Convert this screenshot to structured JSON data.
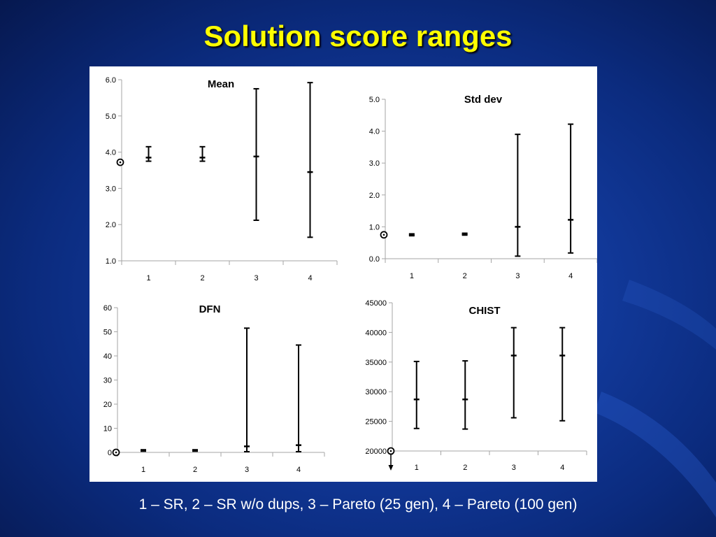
{
  "slide": {
    "title": "Solution score ranges",
    "caption": "1 – SR,  2 – SR w/o dups, 3 – Pareto (25 gen), 4 – Pareto (100 gen)"
  },
  "colors": {
    "title": "#ffff00",
    "caption": "#ffffff",
    "panel": "#ffffff",
    "marks": "#000000",
    "axis": "#a6a6a6"
  },
  "chart_data": [
    {
      "type": "errorbar",
      "title": "Mean",
      "categories": [
        "1",
        "2",
        "3",
        "4"
      ],
      "ylim": [
        1.0,
        6.0
      ],
      "yticks": [
        1.0,
        2.0,
        3.0,
        4.0,
        5.0,
        6.0
      ],
      "tick_decimals": 1,
      "reference": 3.72,
      "points": [
        {
          "center": 3.85,
          "low": 3.75,
          "high": 4.15
        },
        {
          "center": 3.85,
          "low": 3.75,
          "high": 4.15
        },
        {
          "center": 3.88,
          "low": 2.12,
          "high": 5.75
        },
        {
          "center": 3.45,
          "low": 1.65,
          "high": 5.92
        }
      ]
    },
    {
      "type": "errorbar",
      "title": "Std dev",
      "categories": [
        "1",
        "2",
        "3",
        "4"
      ],
      "ylim": [
        0.0,
        5.0
      ],
      "yticks": [
        0.0,
        1.0,
        2.0,
        3.0,
        4.0,
        5.0
      ],
      "tick_decimals": 1,
      "reference": 0.75,
      "points": [
        {
          "center": 0.75,
          "low": 0.72,
          "high": 0.78
        },
        {
          "center": 0.77,
          "low": 0.74,
          "high": 0.8
        },
        {
          "center": 1.0,
          "low": 0.08,
          "high": 3.9
        },
        {
          "center": 1.22,
          "low": 0.18,
          "high": 4.22
        }
      ]
    },
    {
      "type": "errorbar",
      "title": "DFN",
      "categories": [
        "1",
        "2",
        "3",
        "4"
      ],
      "ylim": [
        0,
        60
      ],
      "yticks": [
        0,
        10,
        20,
        30,
        40,
        50,
        60
      ],
      "tick_decimals": 0,
      "reference": 0,
      "points": [
        {
          "center": 0.8,
          "low": 0.5,
          "high": 1.1
        },
        {
          "center": 0.8,
          "low": 0.5,
          "high": 1.1
        },
        {
          "center": 2.5,
          "low": 0.3,
          "high": 51.5
        },
        {
          "center": 3.0,
          "low": 0.3,
          "high": 44.5
        }
      ]
    },
    {
      "type": "errorbar",
      "title": "CHIST",
      "categories": [
        "1",
        "2",
        "3",
        "4"
      ],
      "ylim": [
        20000,
        45000
      ],
      "yticks": [
        20000,
        25000,
        30000,
        35000,
        40000,
        45000
      ],
      "tick_decimals": 0,
      "reference": 20000,
      "reference_arrow": true,
      "points": [
        {
          "center": 28700,
          "low": 23800,
          "high": 35100
        },
        {
          "center": 28700,
          "low": 23700,
          "high": 35200
        },
        {
          "center": 36100,
          "low": 25600,
          "high": 40800
        },
        {
          "center": 36100,
          "low": 25100,
          "high": 40800
        }
      ]
    }
  ]
}
